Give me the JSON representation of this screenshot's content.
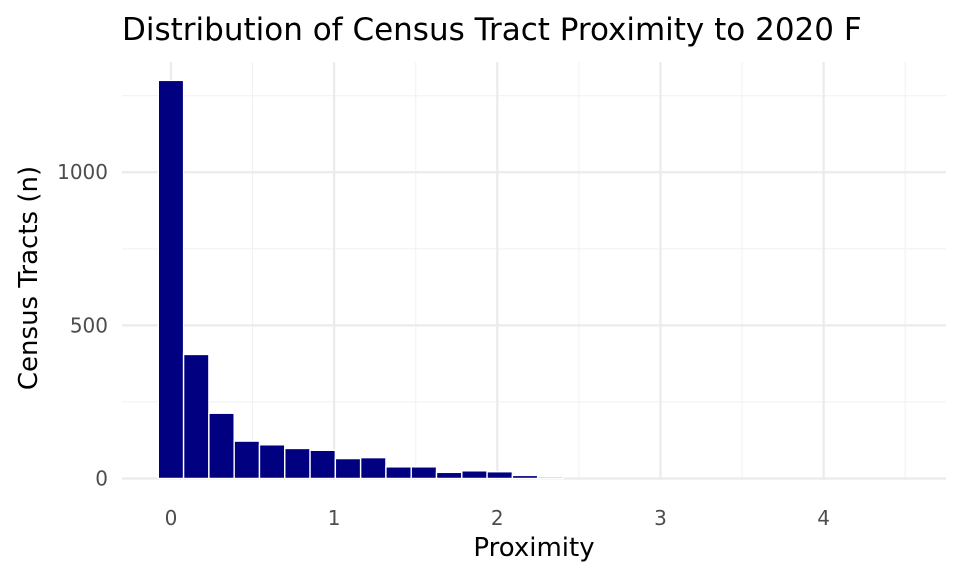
{
  "chart_data": {
    "type": "bar",
    "title": "Distribution of Census Tract Proximity to 2020 F",
    "xlabel": "Proximity",
    "ylabel": "Census Tracts (n)",
    "xlim": [
      -0.3,
      4.75
    ],
    "ylim": [
      -5,
      1360
    ],
    "x_ticks": [
      0,
      1,
      2,
      3,
      4
    ],
    "x_tick_labels": [
      "0",
      "1",
      "2",
      "3",
      "4"
    ],
    "y_ticks": [
      0,
      500,
      1000
    ],
    "y_tick_labels": [
      "0",
      "500",
      "1000"
    ],
    "bin_width": 0.155,
    "x": [
      0.0,
      0.155,
      0.31,
      0.465,
      0.62,
      0.775,
      0.93,
      1.085,
      1.24,
      1.395,
      1.55,
      1.705,
      1.86,
      2.015,
      2.17,
      2.325
    ],
    "values": [
      1300,
      405,
      213,
      122,
      110,
      98,
      92,
      65,
      68,
      38,
      38,
      20,
      25,
      22,
      10,
      5
    ],
    "bar_color": "#000080",
    "grid": true,
    "legend": "none"
  }
}
